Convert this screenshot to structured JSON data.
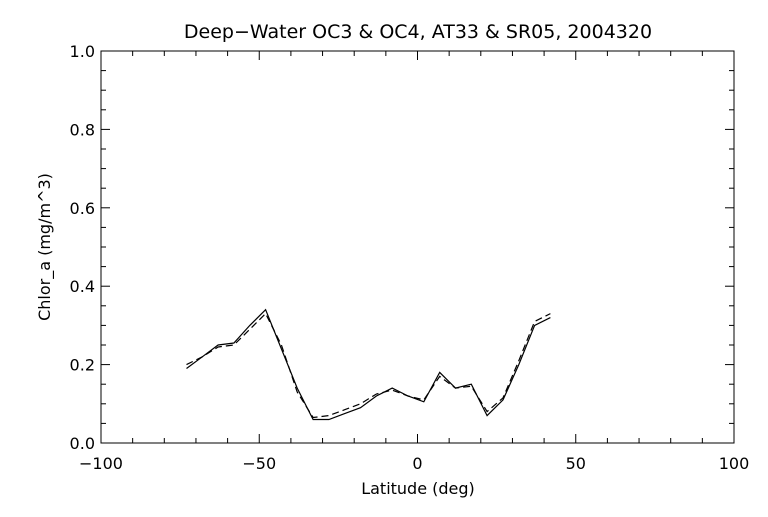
{
  "chart_data": {
    "type": "line",
    "title": "Deep−Water OC3 & OC4, AT33 & SR05, 2004320",
    "xlabel": "Latitude (deg)",
    "ylabel": "Chlor_a (mg/m^3)",
    "xlim": [
      -100,
      100
    ],
    "ylim": [
      0.0,
      1.0
    ],
    "x_ticks": [
      "−100",
      "−50",
      "0",
      "50",
      "100"
    ],
    "y_ticks": [
      "0.0",
      "0.2",
      "0.4",
      "0.6",
      "0.8",
      "1.0"
    ],
    "grid": false,
    "legend": "none",
    "line_color": "#000000",
    "series": [
      {
        "style": "solid",
        "x": [
          -73,
          -68,
          -63,
          -58,
          -53,
          -48,
          -43,
          -38,
          -33,
          -28,
          -23,
          -18,
          -13,
          -8,
          -3,
          2,
          7,
          12,
          17,
          22,
          27,
          32,
          37,
          42
        ],
        "y": [
          0.19,
          0.22,
          0.25,
          0.255,
          0.3,
          0.34,
          0.24,
          0.14,
          0.06,
          0.06,
          0.075,
          0.09,
          0.12,
          0.14,
          0.12,
          0.105,
          0.18,
          0.14,
          0.15,
          0.07,
          0.11,
          0.2,
          0.3,
          0.32
        ]
      },
      {
        "style": "dashed",
        "x": [
          -73,
          -68,
          -63,
          -58,
          -53,
          -48,
          -43,
          -38,
          -33,
          -28,
          -23,
          -18,
          -13,
          -8,
          -3,
          2,
          7,
          12,
          17,
          22,
          27,
          32,
          37,
          42
        ],
        "y": [
          0.2,
          0.22,
          0.245,
          0.25,
          0.29,
          0.33,
          0.25,
          0.13,
          0.065,
          0.07,
          0.085,
          0.1,
          0.125,
          0.135,
          0.12,
          0.11,
          0.17,
          0.14,
          0.145,
          0.08,
          0.115,
          0.21,
          0.31,
          0.33
        ]
      }
    ]
  }
}
